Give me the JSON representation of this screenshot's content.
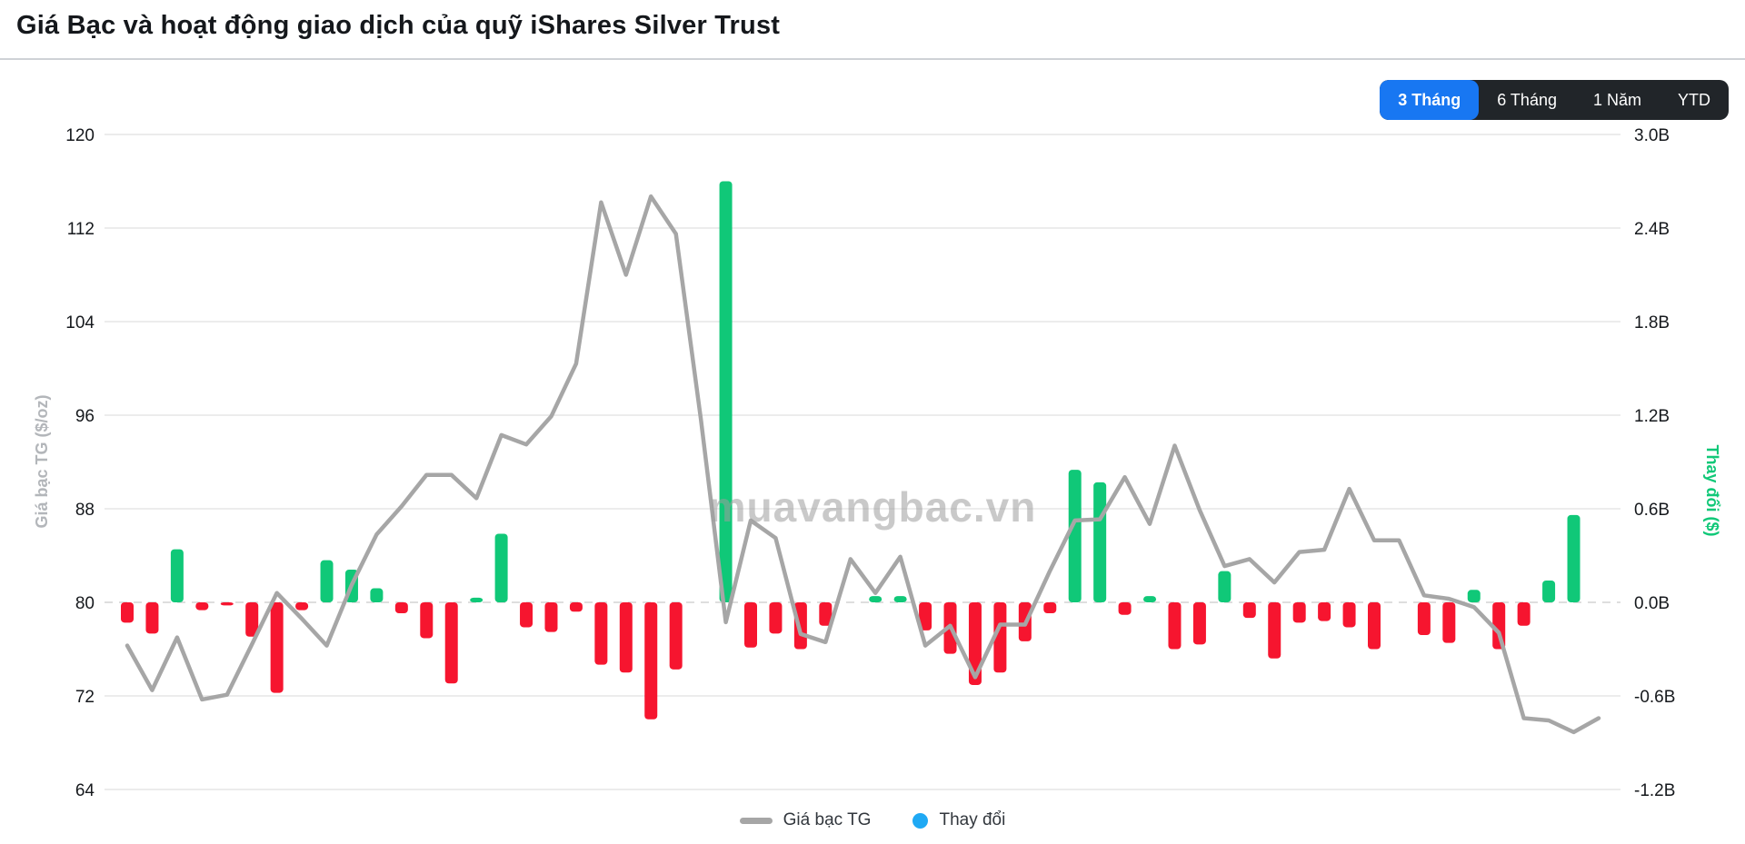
{
  "header": {
    "title": "Giá Bạc và hoạt động giao dịch của quỹ iShares Silver Trust"
  },
  "range_buttons": [
    {
      "key": "3-thang",
      "label": "3 Tháng",
      "active": true
    },
    {
      "key": "6-thang",
      "label": "6 Tháng",
      "active": false
    },
    {
      "key": "1-nam",
      "label": "1 Năm",
      "active": false
    },
    {
      "key": "ytd",
      "label": "YTD",
      "active": false
    }
  ],
  "watermark": "muavangbac.vn",
  "colors": {
    "bar_positive": "#10c878",
    "bar_negative": "#f6152f",
    "price_line": "#a6a6a6",
    "legend_dot": "#1fa9f4",
    "gridline": "#ececec",
    "zero_line": "#dedede",
    "tick_label": "#16191d",
    "left_axis_title": "#b3b6ba",
    "right_axis_title": "#10c878",
    "active_button": "#1877f2",
    "button_bar": "#212529"
  },
  "legend": [
    {
      "label": "Giá bạc TG",
      "swatch": "line"
    },
    {
      "label": "Thay đổi",
      "swatch": "dot"
    }
  ],
  "chart_data": {
    "type": "line+bar",
    "title": "Giá Bạc và hoạt động giao dịch của quỹ iShares Silver Trust",
    "x_axis_labels_visible": false,
    "points": 60,
    "grid": "horizontal",
    "legend_position": "bottom-center",
    "left_axis": {
      "title": "Giá bạc TG ($/oz)",
      "ticks": [
        120,
        112,
        104,
        96,
        88,
        80,
        72,
        64
      ],
      "range": [
        64,
        120
      ]
    },
    "right_axis": {
      "title": "Thay đổi ($)",
      "ticks": [
        "3.0B",
        "2.4B",
        "1.8B",
        "1.2B",
        "0.6B",
        "0.0B",
        "-0.6B",
        "-1.2B"
      ],
      "range_billions": [
        -1.2,
        3.0
      ]
    },
    "series": [
      {
        "name": "Giá bạc TG",
        "type": "line",
        "axis": "left",
        "values": [
          76.3,
          72.5,
          77.0,
          71.7,
          72.1,
          76.4,
          80.8,
          78.6,
          76.3,
          81.5,
          85.8,
          88.2,
          90.9,
          90.9,
          88.9,
          94.3,
          93.5,
          95.9,
          100.4,
          114.2,
          108.0,
          114.7,
          111.5,
          95.7,
          78.3,
          87.0,
          85.5,
          77.3,
          76.6,
          83.7,
          80.8,
          83.9,
          76.3,
          78.0,
          73.6,
          78.1,
          78.1,
          82.7,
          87.0,
          87.1,
          90.7,
          86.7,
          93.4,
          87.9,
          83.1,
          83.7,
          81.7,
          84.3,
          84.5,
          89.7,
          85.3,
          85.3,
          80.6,
          80.3,
          79.6,
          77.4,
          70.1,
          69.9,
          68.9,
          70.1
        ]
      },
      {
        "name": "Thay đổi",
        "type": "bar",
        "axis": "right",
        "unit": "billion $",
        "values": [
          -0.13,
          -0.2,
          0.34,
          -0.05,
          -0.02,
          -0.22,
          -0.58,
          -0.05,
          0.27,
          0.21,
          0.09,
          -0.07,
          -0.23,
          -0.52,
          0.03,
          0.44,
          -0.16,
          -0.19,
          -0.06,
          -0.4,
          -0.45,
          -0.75,
          -0.43,
          0,
          2.7,
          -0.29,
          -0.2,
          -0.3,
          -0.15,
          0,
          0.04,
          0.04,
          -0.18,
          -0.33,
          -0.53,
          -0.45,
          -0.25,
          -0.07,
          0.85,
          0.77,
          -0.08,
          0.04,
          -0.3,
          -0.27,
          0.2,
          -0.1,
          -0.36,
          -0.13,
          -0.12,
          -0.16,
          -0.3,
          0,
          -0.21,
          -0.26,
          0.08,
          -0.3,
          -0.15,
          0.14,
          0.56,
          0
        ]
      }
    ]
  }
}
